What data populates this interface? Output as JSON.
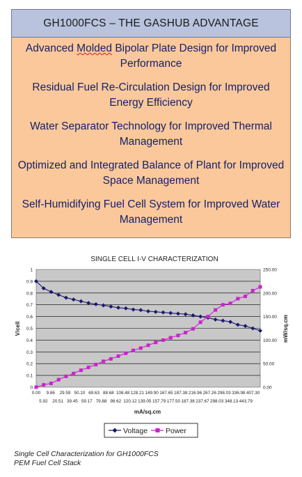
{
  "header": {
    "title": "GH1000FCS – THE GASHUB ADVANTAGE"
  },
  "advantages": [
    {
      "prefix": "Advanced ",
      "underlined": "Molded",
      "suffix": " Bipolar Plate Design for Improved Performance"
    },
    {
      "prefix": "Residual Fuel Re-Circulation Design for Improved Energy Efficiency",
      "underlined": "",
      "suffix": ""
    },
    {
      "prefix": "Water Separator Technology for Improved Thermal Management",
      "underlined": "",
      "suffix": ""
    },
    {
      "prefix": "Optimized and Integrated Balance of Plant for Improved Space Management",
      "underlined": "",
      "suffix": ""
    },
    {
      "prefix": "Self-Humidifying Fuel Cell System for Improved Water Management",
      "underlined": "",
      "suffix": ""
    }
  ],
  "chart_data": {
    "type": "line",
    "title": "SINGLE CELL I-V CHARACTERIZATION",
    "xlabel": "mA/sq.cm",
    "ylabel": "V/cell",
    "y2label": "mW/sq.cm",
    "ylim": [
      0,
      1
    ],
    "y2lim": [
      0,
      250
    ],
    "yticks": [
      "0",
      "0.1",
      "0.2",
      "0.3",
      "0.4",
      "0.5",
      "0.6",
      "0.7",
      "0.8",
      "0.9",
      "1"
    ],
    "y2ticks": [
      "0.00",
      "50.00",
      "100.00",
      "150.00",
      "200.00",
      "250.00"
    ],
    "x_ticks_top": [
      "0.00",
      "9.86",
      "29.59",
      "50.10",
      "69.63",
      "88.68",
      "108.48",
      "128.21",
      "149.90",
      "167.65",
      "187.38",
      "216.96",
      "267.26",
      "298.03",
      "336.98",
      "407.30"
    ],
    "x_ticks_bottom": [
      "5.92",
      "20.51",
      "39.45",
      "59.17",
      "79.88",
      "98.62",
      "120.12",
      "139.05",
      "157.79",
      "177.50",
      "187.38",
      "237.67",
      "298.03",
      "348.13",
      "443.79"
    ],
    "x": [
      0.0,
      5.92,
      9.86,
      20.51,
      29.59,
      39.45,
      50.1,
      59.17,
      69.63,
      79.88,
      88.68,
      98.62,
      108.48,
      120.12,
      128.21,
      139.05,
      149.9,
      157.79,
      167.65,
      177.5,
      187.38,
      187.38,
      216.96,
      237.67,
      267.26,
      298.03,
      298.03,
      336.98,
      348.13,
      407.3,
      443.79
    ],
    "grid": true,
    "legend": "bottom",
    "series": [
      {
        "name": "Voltage",
        "axis": "left",
        "color": "#1a1a70",
        "values": [
          0.9,
          0.84,
          0.81,
          0.785,
          0.76,
          0.745,
          0.73,
          0.715,
          0.705,
          0.695,
          0.685,
          0.675,
          0.67,
          0.66,
          0.655,
          0.645,
          0.64,
          0.635,
          0.63,
          0.625,
          0.62,
          0.61,
          0.6,
          0.59,
          0.575,
          0.565,
          0.555,
          0.53,
          0.52,
          0.5,
          0.48
        ]
      },
      {
        "name": "Power",
        "axis": "right",
        "color": "#cc22cc",
        "values": [
          0,
          5,
          8,
          16,
          23,
          29,
          36,
          42,
          48,
          55,
          60,
          66,
          72,
          78,
          83,
          89,
          95,
          100,
          105,
          110,
          116,
          124,
          138,
          150,
          164,
          175,
          178,
          188,
          193,
          205,
          213
        ]
      }
    ]
  },
  "caption": {
    "line1": "Single Cell Characterization for GH1000FCS",
    "line2": "PEM Fuel Cell Stack"
  }
}
